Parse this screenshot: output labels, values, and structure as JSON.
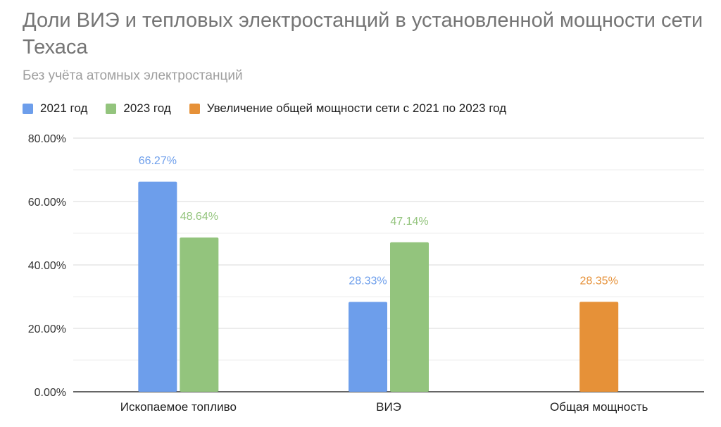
{
  "title": "Доли ВИЭ и тепловых электростанций в установленной мощности сети Техаса",
  "subtitle": "Без учёта атомных электростанций",
  "colors": {
    "blue": "#6d9eeb",
    "green": "#93c47d",
    "orange": "#e69138",
    "grid": "#d9d9d9",
    "axis": "#333333"
  },
  "chart_data": {
    "type": "bar",
    "categories": [
      "Ископаемое топливо",
      "ВИЭ",
      "Общая мощность"
    ],
    "series": [
      {
        "name": "2021 год",
        "color": "#6d9eeb",
        "values": [
          66.27,
          28.33,
          null
        ],
        "labels": [
          "66.27%",
          "28.33%",
          ""
        ]
      },
      {
        "name": "2023 год",
        "color": "#93c47d",
        "values": [
          48.64,
          47.14,
          null
        ],
        "labels": [
          "48.64%",
          "47.14%",
          ""
        ]
      },
      {
        "name": "Увеличение общей мощности сети с 2021 по 2023 год",
        "color": "#e69138",
        "values": [
          null,
          null,
          28.35
        ],
        "labels": [
          "",
          "",
          "28.35%"
        ]
      }
    ],
    "ylim": [
      0,
      80
    ],
    "yticks": [
      "0.00%",
      "20.00%",
      "40.00%",
      "60.00%",
      "80.00%"
    ],
    "ytick_values": [
      0,
      20,
      40,
      60,
      80
    ],
    "grid": true,
    "legend_position": "top-left"
  }
}
